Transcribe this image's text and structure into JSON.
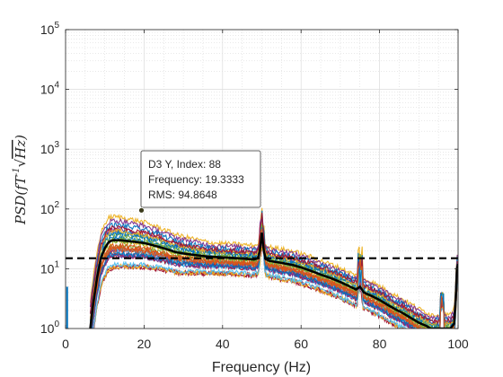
{
  "chart_data": {
    "type": "line",
    "xlabel": "Frequency (Hz)",
    "ylabel": "PSD(fT √Hz)",
    "ylabel_parts": {
      "main": "PSD(fT",
      "sup": "-1",
      "radical": "√",
      "under": "Hz",
      "close": ")"
    },
    "xlim": [
      0,
      100
    ],
    "ylim": [
      1,
      100000
    ],
    "yscale": "log",
    "x_ticks": [
      0,
      20,
      40,
      60,
      80,
      100
    ],
    "y_ticks": [
      {
        "value": 1,
        "base": "10",
        "exp": "0"
      },
      {
        "value": 10,
        "base": "10",
        "exp": "1"
      },
      {
        "value": 100,
        "base": "10",
        "exp": "2"
      },
      {
        "value": 1000,
        "base": "10",
        "exp": "3"
      },
      {
        "value": 10000,
        "base": "10",
        "exp": "4"
      },
      {
        "value": 100000,
        "base": "10",
        "exp": "5"
      }
    ],
    "grid": true,
    "series_count": 30,
    "series_colors": [
      "#0072bd",
      "#d95319",
      "#edb120",
      "#7e2f8e",
      "#77ac30",
      "#4dbeee",
      "#a2142f"
    ],
    "mean_series": {
      "color": "#000000",
      "x": [
        6.3,
        7,
        8,
        9,
        10,
        11,
        12,
        14,
        16,
        18,
        20,
        22,
        24,
        26,
        28,
        30,
        33,
        36,
        40,
        44,
        47,
        48,
        49,
        49.5,
        50,
        50.5,
        51,
        52,
        55,
        58,
        60,
        62,
        65,
        68,
        70,
        72,
        74,
        75,
        76,
        78,
        80,
        82,
        84,
        86,
        88,
        90,
        92,
        93,
        95,
        96,
        97,
        98,
        99,
        99.4,
        99.7,
        100
      ],
      "y": [
        1,
        2.5,
        7,
        15,
        22,
        28,
        30,
        30,
        29,
        28,
        27,
        25,
        23,
        21,
        19,
        18,
        17,
        16,
        15.5,
        15,
        14.5,
        14.3,
        15,
        20,
        40,
        20,
        14.5,
        13.5,
        12.5,
        11.5,
        10.5,
        9.5,
        8,
        6.8,
        6,
        5.2,
        4.5,
        5,
        4,
        3.5,
        3,
        2.5,
        2.1,
        1.8,
        1.5,
        1.25,
        1.1,
        1.0,
        1.0,
        1.0,
        1.0,
        1.0,
        1.2,
        3,
        10,
        12
      ]
    },
    "threshold": {
      "value": 15,
      "style": "dashed",
      "color": "#000000"
    },
    "datatip": {
      "x": 19.3333,
      "y": 94.8648,
      "line1": "D3 Y, Index: 88",
      "line2": "Frequency: 19.3333",
      "line3": "RMS: 94.8648"
    }
  }
}
